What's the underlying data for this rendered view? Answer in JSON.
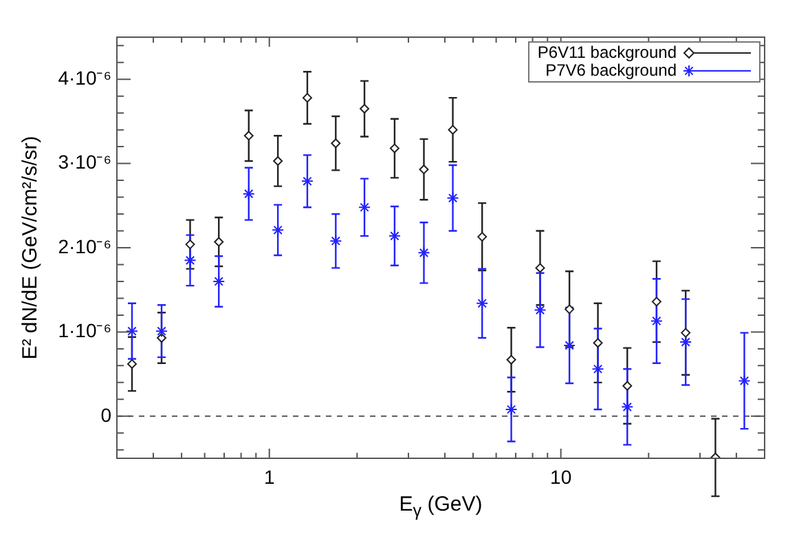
{
  "chart_data": {
    "type": "scatter",
    "xlabel": "E$_{γ}$ (GeV)",
    "ylabel": "E² dN/dE (GeV/cm²/s/sr)",
    "log": "x",
    "grid": false,
    "legend": "top right",
    "x": [
      0.338,
      0.427,
      0.535,
      0.671,
      0.85,
      1.07,
      1.35,
      1.69,
      2.12,
      2.69,
      3.39,
      4.26,
      5.37,
      6.76,
      8.49,
      10.7,
      13.4,
      16.9,
      21.3,
      26.8,
      33.9,
      42.6
    ],
    "xlim": [
      0.3,
      50
    ],
    "xticks": [
      {
        "value": 0.4,
        "label": null
      },
      {
        "value": 0.5,
        "label": null
      },
      {
        "value": 0.6,
        "label": null
      },
      {
        "value": 0.7,
        "label": null
      },
      {
        "value": 0.8,
        "label": null
      },
      {
        "value": 0.9,
        "label": null
      },
      1,
      {
        "value": 2,
        "label": null
      },
      {
        "value": 3,
        "label": null
      },
      {
        "value": 4,
        "label": null
      },
      {
        "value": 5,
        "label": null
      },
      {
        "value": 6,
        "label": null
      },
      {
        "value": 7,
        "label": null
      },
      {
        "value": 8,
        "label": null
      },
      {
        "value": 9,
        "label": null
      },
      10,
      {
        "value": 20,
        "label": null
      },
      {
        "value": 30,
        "label": null
      },
      {
        "value": 40,
        "label": null
      }
    ],
    "ylim": [
      -5e-07,
      4.5e-06
    ],
    "yticks": [
      {
        "value": -4e-07,
        "label": null
      },
      {
        "value": -2e-07,
        "label": null
      },
      0,
      {
        "value": 2e-07,
        "label": null
      },
      {
        "value": 4e-07,
        "label": null
      },
      {
        "value": 6e-07,
        "label": null
      },
      {
        "value": 8e-07,
        "label": null
      },
      {
        "value": 1e-06,
        "label": "1·10⁻⁶"
      },
      {
        "value": 1.2e-06,
        "label": null
      },
      {
        "value": 1.4e-06,
        "label": null
      },
      {
        "value": 1.6e-06,
        "label": null
      },
      {
        "value": 1.8e-06,
        "label": null
      },
      {
        "value": 2e-06,
        "label": "2·10⁻⁶"
      },
      {
        "value": 2.2e-06,
        "label": null
      },
      {
        "value": 2.4e-06,
        "label": null
      },
      {
        "value": 2.6e-06,
        "label": null
      },
      {
        "value": 2.8e-06,
        "label": null
      },
      {
        "value": 3e-06,
        "label": "3·10⁻⁶"
      },
      {
        "value": 3.2e-06,
        "label": null
      },
      {
        "value": 3.4e-06,
        "label": null
      },
      {
        "value": 3.6e-06,
        "label": null
      },
      {
        "value": 3.8e-06,
        "label": null
      },
      {
        "value": 4e-06,
        "label": "4·10⁻⁶"
      },
      {
        "value": 4.2e-06,
        "label": null
      },
      {
        "value": 4.4e-06,
        "label": null
      }
    ],
    "ref_lines": [
      {
        "axis": "y",
        "value": 0,
        "color": "#555555",
        "line_style": "dashed"
      }
    ],
    "series": [
      {
        "name": "P6V11 background",
        "color": "#222222",
        "marker": "diamond",
        "values": [
          6.2e-07,
          9.3e-07,
          2.04e-06,
          2.07e-06,
          3.33e-06,
          3.03e-06,
          3.78e-06,
          3.24e-06,
          3.65e-06,
          3.18e-06,
          2.93e-06,
          3.4e-06,
          2.13e-06,
          6.7e-07,
          1.76e-06,
          1.27e-06,
          8.7e-07,
          3.6e-07,
          1.36e-06,
          9.9e-07,
          -4.9e-07,
          null
        ],
        "errors": [
          3.2e-07,
          3e-07,
          2.9e-07,
          2.9e-07,
          3e-07,
          3e-07,
          3.1e-07,
          3.2e-07,
          3.3e-07,
          3.5e-07,
          3.6e-07,
          3.8e-07,
          4e-07,
          3.8e-07,
          4.4e-07,
          4.5e-07,
          4.7e-07,
          4.5e-07,
          4.8e-07,
          5e-07,
          4.6e-07,
          null
        ]
      },
      {
        "name": "P7V6 background",
        "color": "#2222ff",
        "marker": "cross",
        "values": [
          1.01e-06,
          1.01e-06,
          1.85e-06,
          1.6e-06,
          2.64e-06,
          2.21e-06,
          2.79e-06,
          2.08e-06,
          2.48e-06,
          2.14e-06,
          1.94e-06,
          2.59e-06,
          1.34e-06,
          8e-08,
          1.26e-06,
          8.4e-07,
          5.6e-07,
          1.1e-07,
          1.13e-06,
          8.8e-07,
          null,
          4.2e-07
        ],
        "errors": [
          3.3e-07,
          3.1e-07,
          3e-07,
          3e-07,
          3.1e-07,
          3e-07,
          3.1e-07,
          3.2e-07,
          3.4e-07,
          3.5e-07,
          3.6e-07,
          3.9e-07,
          4.1e-07,
          3.8e-07,
          4.4e-07,
          4.5e-07,
          4.8e-07,
          4.5e-07,
          5e-07,
          5.1e-07,
          null,
          5.7e-07
        ]
      }
    ]
  }
}
